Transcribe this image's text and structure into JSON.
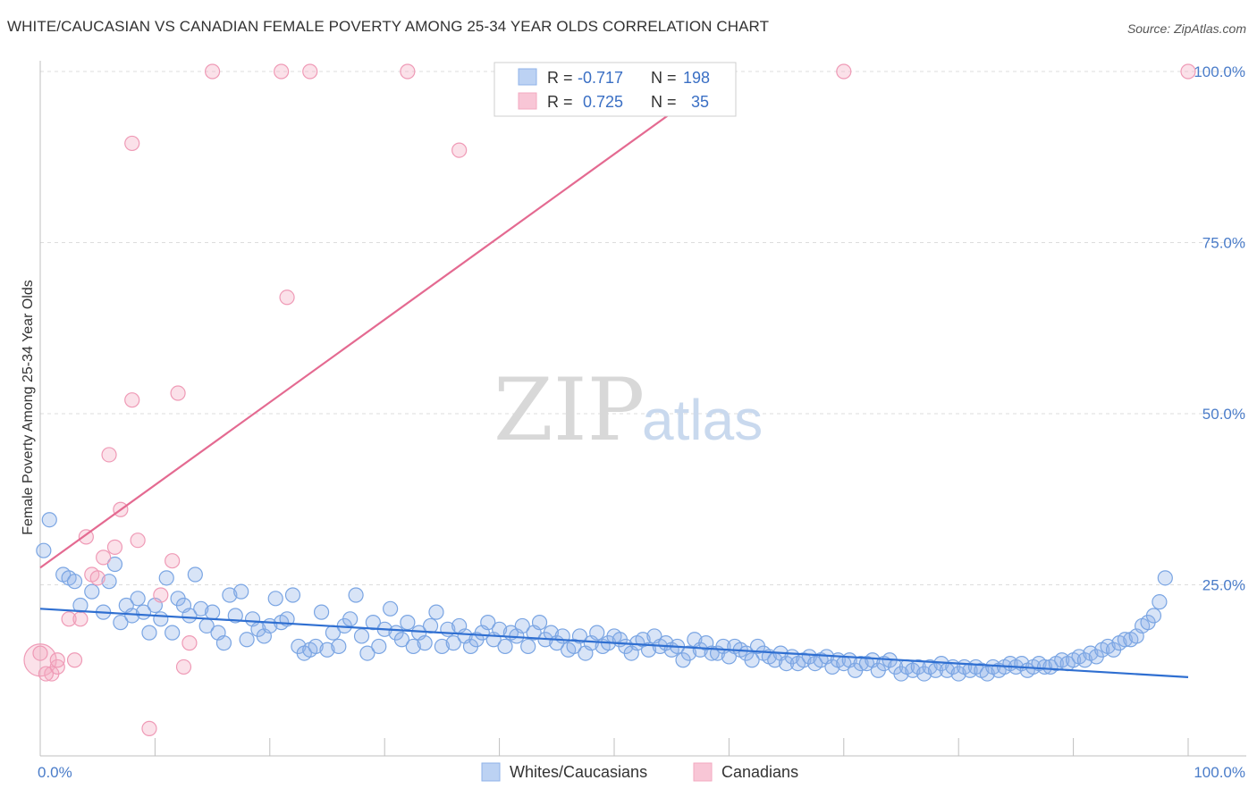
{
  "title": "WHITE/CAUCASIAN VS CANADIAN FEMALE POVERTY AMONG 25-34 YEAR OLDS CORRELATION CHART",
  "source": "Source: ZipAtlas.com",
  "watermark": {
    "zip": "ZIP",
    "atlas": "atlas"
  },
  "legend_box": {
    "rows": [
      {
        "r_label": "R =",
        "r_value": "-0.717",
        "n_label": "N =",
        "n_value": "198"
      },
      {
        "r_label": "R =",
        "r_value": "0.725",
        "n_label": "N =",
        "n_value": "35"
      }
    ]
  },
  "chart_data": {
    "type": "scatter",
    "title": "WHITE/CAUCASIAN VS CANADIAN FEMALE POVERTY AMONG 25-34 YEAR OLDS CORRELATION CHART",
    "xlabel": "",
    "ylabel": "Female Poverty Among 25-34 Year Olds",
    "xlim": [
      0,
      100
    ],
    "ylim": [
      0,
      100
    ],
    "x_tick_labels": [
      "0.0%",
      "100.0%"
    ],
    "y_tick_labels": [
      "25.0%",
      "50.0%",
      "75.0%",
      "100.0%"
    ],
    "y_ticks": [
      25,
      50,
      75,
      100
    ],
    "grid": true,
    "legend_position": "bottom",
    "colors": {
      "whites": "#8fb3e8",
      "whites_line": "#2f6fd1",
      "canadians": "#f3a9c0",
      "canadians_line": "#e46a91"
    },
    "series": [
      {
        "name": "Whites/Caucasians",
        "r": -0.717,
        "n": 198,
        "trend": {
          "x": [
            0,
            100
          ],
          "y": [
            21.5,
            11.5
          ]
        },
        "points": [
          [
            0.3,
            30
          ],
          [
            0.8,
            34.5
          ],
          [
            2,
            26.5
          ],
          [
            2.5,
            26
          ],
          [
            3,
            25.5
          ],
          [
            3.5,
            22
          ],
          [
            4.5,
            24
          ],
          [
            5.5,
            21
          ],
          [
            6,
            25.5
          ],
          [
            6.5,
            28
          ],
          [
            7,
            19.5
          ],
          [
            7.5,
            22
          ],
          [
            8,
            20.5
          ],
          [
            8.5,
            23
          ],
          [
            9,
            21
          ],
          [
            9.5,
            18
          ],
          [
            10,
            22
          ],
          [
            10.5,
            20
          ],
          [
            11,
            26
          ],
          [
            11.5,
            18
          ],
          [
            12,
            23
          ],
          [
            12.5,
            22
          ],
          [
            13,
            20.5
          ],
          [
            13.5,
            26.5
          ],
          [
            14,
            21.5
          ],
          [
            14.5,
            19
          ],
          [
            15,
            21
          ],
          [
            15.5,
            18
          ],
          [
            16,
            16.5
          ],
          [
            16.5,
            23.5
          ],
          [
            17,
            20.5
          ],
          [
            17.5,
            24
          ],
          [
            18,
            17
          ],
          [
            18.5,
            20
          ],
          [
            19,
            18.5
          ],
          [
            19.5,
            17.5
          ],
          [
            20,
            19
          ],
          [
            20.5,
            23
          ],
          [
            21,
            19.5
          ],
          [
            21.5,
            20
          ],
          [
            22,
            23.5
          ],
          [
            22.5,
            16
          ],
          [
            23,
            15
          ],
          [
            23.5,
            15.5
          ],
          [
            24,
            16
          ],
          [
            24.5,
            21
          ],
          [
            25,
            15.5
          ],
          [
            25.5,
            18
          ],
          [
            26,
            16
          ],
          [
            26.5,
            19
          ],
          [
            27,
            20
          ],
          [
            27.5,
            23.5
          ],
          [
            28,
            17.5
          ],
          [
            28.5,
            15
          ],
          [
            29,
            19.5
          ],
          [
            29.5,
            16
          ],
          [
            30,
            18.5
          ],
          [
            30.5,
            21.5
          ],
          [
            31,
            18
          ],
          [
            31.5,
            17
          ],
          [
            32,
            19.5
          ],
          [
            32.5,
            16
          ],
          [
            33,
            18
          ],
          [
            33.5,
            16.5
          ],
          [
            34,
            19
          ],
          [
            34.5,
            21
          ],
          [
            35,
            16
          ],
          [
            35.5,
            18.5
          ],
          [
            36,
            16.5
          ],
          [
            36.5,
            19
          ],
          [
            37,
            17.5
          ],
          [
            37.5,
            16
          ],
          [
            38,
            17
          ],
          [
            38.5,
            18
          ],
          [
            39,
            19.5
          ],
          [
            39.5,
            17
          ],
          [
            40,
            18.5
          ],
          [
            40.5,
            16
          ],
          [
            41,
            18
          ],
          [
            41.5,
            17.5
          ],
          [
            42,
            19
          ],
          [
            42.5,
            16
          ],
          [
            43,
            18
          ],
          [
            43.5,
            19.5
          ],
          [
            44,
            17
          ],
          [
            44.5,
            18
          ],
          [
            45,
            16.5
          ],
          [
            45.5,
            17.5
          ],
          [
            46,
            15.5
          ],
          [
            46.5,
            16
          ],
          [
            47,
            17.5
          ],
          [
            47.5,
            15
          ],
          [
            48,
            16.5
          ],
          [
            48.5,
            18
          ],
          [
            49,
            16
          ],
          [
            49.5,
            16.5
          ],
          [
            50,
            17.5
          ],
          [
            50.5,
            17
          ],
          [
            51,
            16
          ],
          [
            51.5,
            15
          ],
          [
            52,
            16.5
          ],
          [
            52.5,
            17
          ],
          [
            53,
            15.5
          ],
          [
            53.5,
            17.5
          ],
          [
            54,
            16
          ],
          [
            54.5,
            16.5
          ],
          [
            55,
            15.5
          ],
          [
            55.5,
            16
          ],
          [
            56,
            14
          ],
          [
            56.5,
            15
          ],
          [
            57,
            17
          ],
          [
            57.5,
            15.5
          ],
          [
            58,
            16.5
          ],
          [
            58.5,
            15
          ],
          [
            59,
            15
          ],
          [
            59.5,
            16
          ],
          [
            60,
            14.5
          ],
          [
            60.5,
            16
          ],
          [
            61,
            15.5
          ],
          [
            61.5,
            15
          ],
          [
            62,
            14
          ],
          [
            62.5,
            16
          ],
          [
            63,
            15
          ],
          [
            63.5,
            14.5
          ],
          [
            64,
            14
          ],
          [
            64.5,
            15
          ],
          [
            65,
            13.5
          ],
          [
            65.5,
            14.5
          ],
          [
            66,
            13.5
          ],
          [
            66.5,
            14
          ],
          [
            67,
            14.5
          ],
          [
            67.5,
            13.5
          ],
          [
            68,
            14
          ],
          [
            68.5,
            14.5
          ],
          [
            69,
            13
          ],
          [
            69.5,
            14
          ],
          [
            70,
            13.5
          ],
          [
            70.5,
            14
          ],
          [
            71,
            12.5
          ],
          [
            71.5,
            13.5
          ],
          [
            72,
            13.5
          ],
          [
            72.5,
            14
          ],
          [
            73,
            12.5
          ],
          [
            73.5,
            13.5
          ],
          [
            74,
            14
          ],
          [
            74.5,
            13
          ],
          [
            75,
            12
          ],
          [
            75.5,
            13
          ],
          [
            76,
            12.5
          ],
          [
            76.5,
            13
          ],
          [
            77,
            12
          ],
          [
            77.5,
            13
          ],
          [
            78,
            12.5
          ],
          [
            78.5,
            13.5
          ],
          [
            79,
            12.5
          ],
          [
            79.5,
            13
          ],
          [
            80,
            12
          ],
          [
            80.5,
            13
          ],
          [
            81,
            12.5
          ],
          [
            81.5,
            13
          ],
          [
            82,
            12.5
          ],
          [
            82.5,
            12
          ],
          [
            83,
            13
          ],
          [
            83.5,
            12.5
          ],
          [
            84,
            13
          ],
          [
            84.5,
            13.5
          ],
          [
            85,
            13
          ],
          [
            85.5,
            13.5
          ],
          [
            86,
            12.5
          ],
          [
            86.5,
            13
          ],
          [
            87,
            13.5
          ],
          [
            87.5,
            13
          ],
          [
            88,
            13
          ],
          [
            88.5,
            13.5
          ],
          [
            89,
            14
          ],
          [
            89.5,
            13.5
          ],
          [
            90,
            14
          ],
          [
            90.5,
            14.5
          ],
          [
            91,
            14
          ],
          [
            91.5,
            15
          ],
          [
            92,
            14.5
          ],
          [
            92.5,
            15.5
          ],
          [
            93,
            16
          ],
          [
            93.5,
            15.5
          ],
          [
            94,
            16.5
          ],
          [
            94.5,
            17
          ],
          [
            95,
            17
          ],
          [
            95.5,
            17.5
          ],
          [
            96,
            19
          ],
          [
            96.5,
            19.5
          ],
          [
            97,
            20.5
          ],
          [
            97.5,
            22.5
          ],
          [
            98,
            26
          ]
        ]
      },
      {
        "name": "Canadians",
        "r": 0.725,
        "n": 35,
        "trend": {
          "x": [
            0,
            60
          ],
          "y": [
            27.5,
            100
          ]
        },
        "points": [
          [
            0,
            14
          ],
          [
            1,
            12
          ],
          [
            1.5,
            13
          ],
          [
            1.5,
            14
          ],
          [
            2.5,
            20
          ],
          [
            3,
            14
          ],
          [
            3.5,
            20
          ],
          [
            4,
            32
          ],
          [
            4.5,
            26.5
          ],
          [
            5,
            26
          ],
          [
            5.5,
            29
          ],
          [
            6,
            44
          ],
          [
            6.5,
            30.5
          ],
          [
            7,
            36
          ],
          [
            8,
            52
          ],
          [
            8.5,
            31.5
          ],
          [
            8,
            89.5
          ],
          [
            9.5,
            4
          ],
          [
            10.5,
            23.5
          ],
          [
            11.5,
            28.5
          ],
          [
            12,
            53
          ],
          [
            12.5,
            13
          ],
          [
            13,
            16.5
          ],
          [
            15,
            100
          ],
          [
            21,
            100
          ],
          [
            21.5,
            67
          ],
          [
            23.5,
            100
          ],
          [
            32,
            100
          ],
          [
            36.5,
            88.5
          ],
          [
            50,
            100
          ],
          [
            56,
            100
          ],
          [
            70,
            100
          ],
          [
            100,
            100
          ],
          [
            0,
            15
          ],
          [
            0.5,
            12
          ]
        ]
      }
    ]
  },
  "bottom_legend": [
    {
      "label": "Whites/Caucasians"
    },
    {
      "label": "Canadians"
    }
  ]
}
